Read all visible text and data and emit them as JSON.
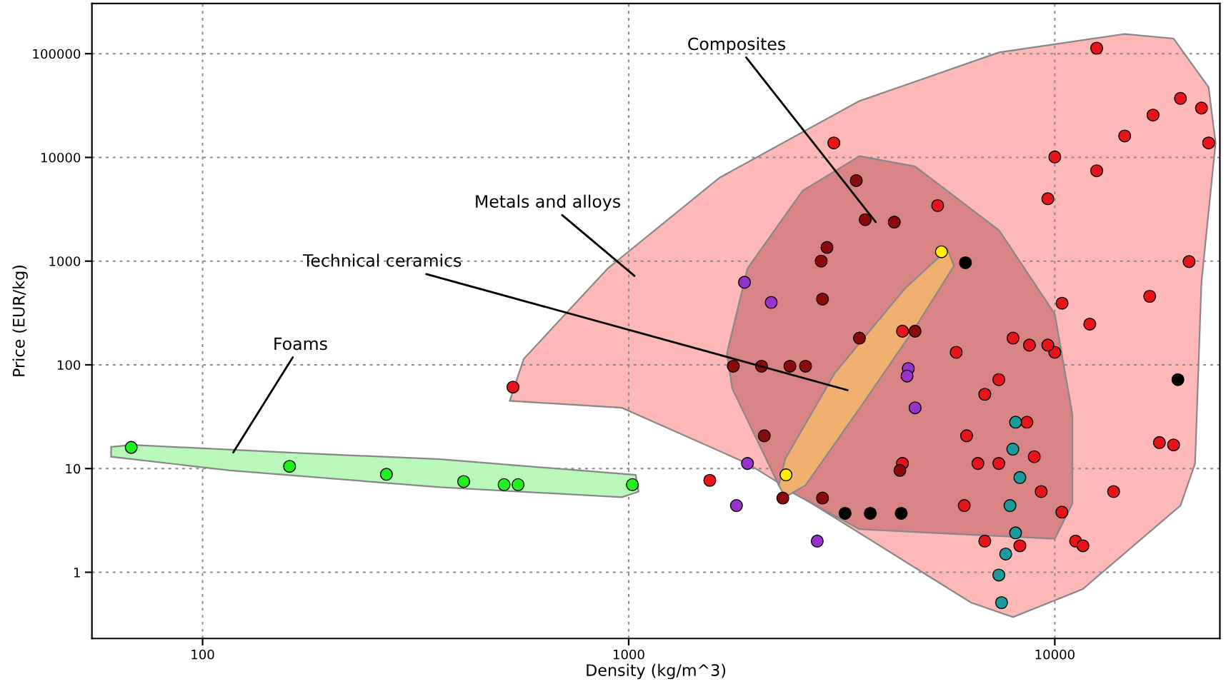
{
  "chart_data": {
    "type": "scatter",
    "xlabel": "Density (kg/m^3)",
    "ylabel": "Price (EUR/kg)",
    "log": "xy",
    "grid": true,
    "marker": "circle",
    "xlim": [
      55,
      24400
    ],
    "ylim": [
      0.23,
      305000
    ],
    "xticks": [
      100,
      1000,
      10000
    ],
    "yticks": [
      1,
      10,
      100,
      1000,
      10000,
      100000
    ],
    "annotations": [
      {
        "text": "Composites",
        "x": 3800,
        "y": 2380
      },
      "Metals and alloys",
      "Technical ceramics",
      {
        "text": "Foams",
        "x": 118,
        "y": 14.3
      }
    ],
    "series": [
      {
        "type": "area",
        "marker": "none",
        "color": "#ffb8b8",
        "x": [
          526,
          567,
          893,
          1633,
          3475,
          7394,
          14590,
          19000,
          22960,
          23840,
          22090,
          21340,
          19720,
          11640,
          7980,
          6360,
          3475,
          1900,
          964,
          526
        ],
        "values": [
          45,
          114,
          850,
          6370,
          34900,
          103000,
          155000,
          140000,
          47500,
          13800,
          625,
          11.2,
          4.4,
          0.69,
          0.37,
          0.51,
          2.4,
          11.2,
          38.5,
          45
        ]
      },
      {
        "type": "area",
        "marker": "none",
        "color": "#d88484",
        "x": [
          1700,
          1900,
          2560,
          3480,
          4700,
          7400,
          10000,
          11000,
          11000,
          10000,
          3480,
          2250,
          1750,
          1700
        ],
        "values": [
          129,
          850,
          4770,
          10300,
          8200,
          1980,
          310,
          33,
          4.6,
          2.1,
          2.6,
          6.9,
          59,
          129
        ]
      },
      {
        "type": "area",
        "marker": "none",
        "color": "#f0b070",
        "x": [
          2250,
          2330,
          3050,
          4450,
          5600,
          5800,
          4700,
          3490,
          2600,
          2330,
          2250
        ],
        "values": [
          6.9,
          12.4,
          84,
          545,
          1300,
          900,
          228,
          38.5,
          6.9,
          5.3,
          6.9
        ]
      },
      {
        "type": "area",
        "marker": "none",
        "color": "#b8f8b8",
        "x": [
          61,
          68.5,
          170,
          361,
          1038,
          1055,
          964,
          361,
          116,
          61
        ],
        "values": [
          16.2,
          16.9,
          14.1,
          12.3,
          8.7,
          6.0,
          5.3,
          6.6,
          9.6,
          13.0
        ]
      },
      {
        "color": "#e8141a",
        "x": [
          535,
          1550,
          3030,
          5310,
          4390,
          4390,
          6210,
          6850,
          7390,
          7980,
          8720,
          8600,
          8950,
          9290,
          10000,
          10400,
          12080,
          10000,
          9630,
          10390,
          11190,
          11640,
          12540,
          14590,
          17000,
          19720,
          22090,
          22960,
          12540,
          16700,
          20660,
          17600,
          19000,
          13740,
          7390,
          6850,
          8280,
          6130,
          6600,
          5870,
          9630
        ],
        "values": [
          61,
          7.7,
          13800,
          3430,
          211,
          11.2,
          20.7,
          52,
          72,
          181,
          155,
          28,
          13,
          6.0,
          132,
          393,
          247,
          10100,
          4000,
          3.8,
          2.0,
          1.8,
          7430,
          16100,
          25600,
          37100,
          29900,
          13800,
          113000,
          458,
          990,
          17.8,
          16.9,
          6.0,
          11.2,
          2.0,
          1.8,
          4.4,
          11.2,
          132,
          155
        ]
      },
      {
        "color": "#8b0a0a",
        "x": [
          3420,
          3590,
          4200,
          2920,
          2830,
          1760,
          2050,
          2390,
          2600,
          2080,
          2300,
          2850,
          3480,
          4700,
          4330,
          2850
        ],
        "values": [
          5980,
          2510,
          2380,
          1355,
          1000,
          97,
          97,
          97,
          97,
          20.7,
          5.2,
          5.2,
          181,
          211,
          9.6,
          430
        ]
      },
      {
        "color": "#22ee22",
        "x": [
          68,
          160,
          270,
          410,
          510,
          550,
          1020
        ],
        "values": [
          16,
          10.5,
          8.8,
          7.5,
          7,
          7,
          7
        ]
      },
      {
        "color": "#ffee00",
        "x": [
          2340,
          5420
        ],
        "values": [
          8.7,
          1230
        ]
      },
      {
        "color": "#000000",
        "x": [
          3220,
          3690,
          4360,
          6170,
          19450
        ],
        "values": [
          3.7,
          3.7,
          3.7,
          965,
          72
        ]
      },
      {
        "color": "#9933cc",
        "x": [
          1870,
          2160,
          1900,
          1790,
          2770,
          4700,
          4530,
          4500
        ],
        "values": [
          625,
          400,
          11.2,
          4.4,
          2.0,
          38.5,
          92,
          78
        ]
      },
      {
        "color": "#1a9a9a",
        "x": [
          8090,
          7970,
          8280,
          7850,
          8090,
          7670,
          7390,
          7500
        ],
        "values": [
          28,
          15.4,
          8.2,
          4.4,
          2.4,
          1.5,
          0.94,
          0.51
        ]
      }
    ]
  }
}
